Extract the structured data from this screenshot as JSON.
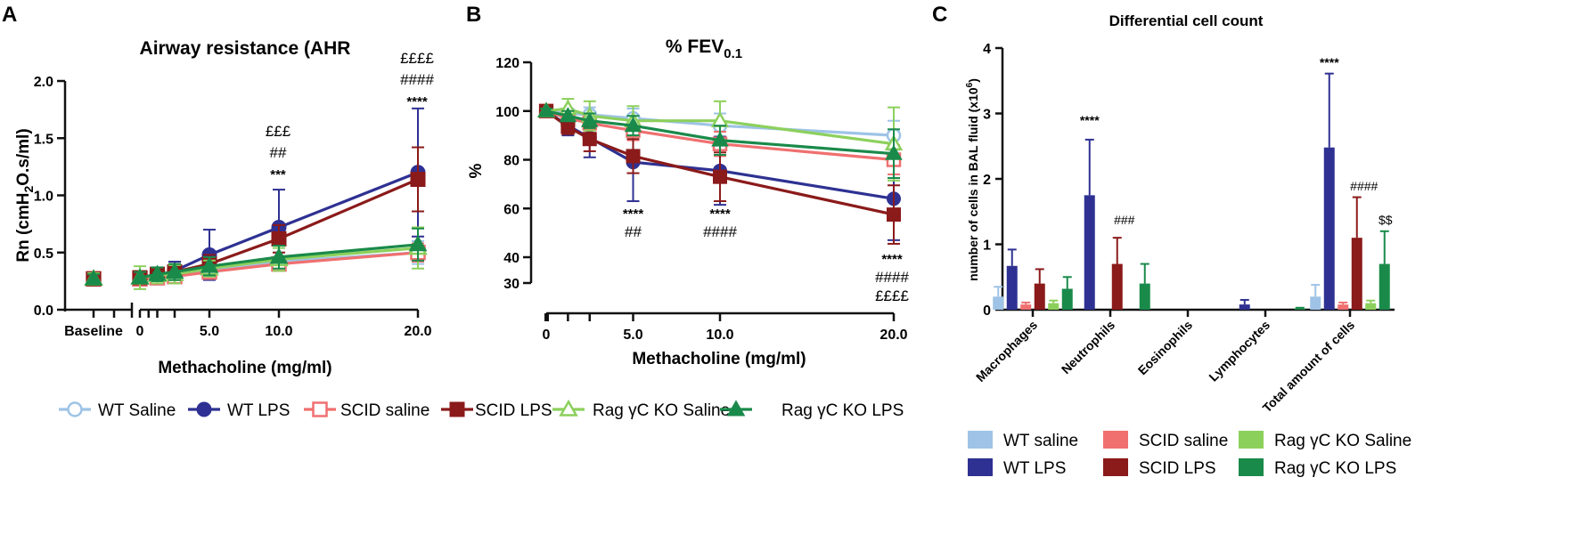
{
  "panels": {
    "A": {
      "letter": "A",
      "title": "Airway resistance (AHR",
      "ylabel": "Rn (cmH2O.s/ml)",
      "xlabel": "Methacholine (mg/ml)"
    },
    "B": {
      "letter": "B",
      "title": "% FEV0.1",
      "ylabel": "%",
      "xlabel": "Methacholine (mg/ml)"
    },
    "C": {
      "letter": "C",
      "title": "Differential cell count",
      "ylabel": "number of cells in BAL fluid (x10^6)"
    }
  },
  "legend_line": [
    {
      "label": "WT Saline",
      "color": "#9ec3e6",
      "marker": "circle-open"
    },
    {
      "label": "WT LPS",
      "color": "#2e3192",
      "marker": "circle"
    },
    {
      "label": "SCID saline",
      "color": "#f07070",
      "marker": "square-open"
    },
    {
      "label": "SCID LPS",
      "color": "#8b1a1a",
      "marker": "square"
    },
    {
      "label": "Rag γC KO Saline",
      "color": "#8cd05c",
      "marker": "triangle-open"
    },
    {
      "label": "Rag γC KO LPS",
      "color": "#1a8a4a",
      "marker": "triangle"
    }
  ],
  "legend_bar": [
    {
      "label": "WT saline",
      "color": "#9ec3e6"
    },
    {
      "label": "SCID saline",
      "color": "#f07070"
    },
    {
      "label": "Rag γC KO Saline",
      "color": "#8cd05c"
    },
    {
      "label": "WT LPS",
      "color": "#2e3192"
    },
    {
      "label": "SCID LPS",
      "color": "#8b1a1a"
    },
    {
      "label": "Rag γC KO LPS",
      "color": "#1a8a4a"
    }
  ],
  "chart_data": [
    {
      "id": "A",
      "type": "line",
      "title": "Airway resistance (AHR",
      "xlabel": "Methacholine (mg/ml)",
      "ylabel": "Rn (cmH2O.s/ml)",
      "xticks": [
        "Baseline",
        "0",
        "5.0",
        "10.0",
        "20.0"
      ],
      "yticks": [
        "0.0",
        "0.5",
        "1.0",
        "1.5",
        "2.0"
      ],
      "ylim": [
        0,
        2.0
      ],
      "x": [
        0,
        0.625,
        1.25,
        2.5,
        5,
        10,
        20
      ],
      "series": [
        {
          "name": "WT Saline",
          "values": [
            0.27,
            0.27,
            0.28,
            0.3,
            0.34,
            0.42,
            0.5
          ],
          "err": [
            0.05,
            0.05,
            0.06,
            0.06,
            0.06,
            0.08,
            0.1
          ]
        },
        {
          "name": "WT LPS",
          "values": [
            0.27,
            0.28,
            0.3,
            0.34,
            0.48,
            0.72,
            1.2
          ],
          "err": [
            0.04,
            0.05,
            0.07,
            0.08,
            0.22,
            0.33,
            0.56
          ]
        },
        {
          "name": "SCID saline",
          "values": [
            0.27,
            0.27,
            0.28,
            0.29,
            0.33,
            0.4,
            0.5
          ],
          "err": [
            0.04,
            0.04,
            0.05,
            0.05,
            0.05,
            0.06,
            0.08
          ]
        },
        {
          "name": "SCID LPS",
          "values": [
            0.27,
            0.28,
            0.31,
            0.33,
            0.4,
            0.62,
            1.14
          ],
          "err": [
            0.04,
            0.05,
            0.06,
            0.07,
            0.08,
            0.12,
            0.28
          ]
        },
        {
          "name": "Rag γC KO Saline",
          "values": [
            0.27,
            0.28,
            0.3,
            0.31,
            0.36,
            0.44,
            0.54
          ],
          "err": [
            0.05,
            0.1,
            0.07,
            0.08,
            0.07,
            0.1,
            0.18
          ]
        },
        {
          "name": "Rag γC KO LPS",
          "values": [
            0.27,
            0.28,
            0.31,
            0.33,
            0.38,
            0.46,
            0.57
          ],
          "err": [
            0.04,
            0.05,
            0.06,
            0.07,
            0.08,
            0.1,
            0.14
          ]
        }
      ],
      "annotations": [
        {
          "x": 10,
          "lines": [
            "£££",
            "##",
            "***"
          ]
        },
        {
          "x": 20,
          "lines": [
            "££££",
            "####",
            "****"
          ]
        }
      ]
    },
    {
      "id": "B",
      "type": "line",
      "title": "% FEV0.1",
      "xlabel": "Methacholine (mg/ml)",
      "ylabel": "%",
      "xticks": [
        "0",
        "5.0",
        "10.0",
        "20.0"
      ],
      "yticks": [
        "30",
        "40",
        "60",
        "80",
        "100",
        "120"
      ],
      "ylim": [
        30,
        120
      ],
      "x": [
        0,
        1.25,
        2.5,
        5,
        10,
        20
      ],
      "series": [
        {
          "name": "WT Saline",
          "values": [
            100,
            99,
            98.5,
            97,
            94,
            90
          ],
          "err": [
            1,
            2,
            3,
            4,
            5,
            6
          ]
        },
        {
          "name": "WT LPS",
          "values": [
            100,
            94,
            89,
            79,
            75.5,
            64
          ],
          "err": [
            1,
            4,
            8,
            16,
            14,
            17
          ]
        },
        {
          "name": "SCID saline",
          "values": [
            100,
            97,
            95,
            92,
            86.5,
            80
          ],
          "err": [
            1,
            2,
            3,
            4,
            5,
            6
          ]
        },
        {
          "name": "SCID LPS",
          "values": [
            100,
            93.5,
            88.5,
            81.5,
            73,
            57.5
          ],
          "err": [
            1,
            3,
            5,
            7,
            10,
            12
          ]
        },
        {
          "name": "Rag γC KO Saline",
          "values": [
            100,
            101,
            98,
            96,
            96,
            86.5
          ],
          "err": [
            1,
            4,
            6,
            6,
            8,
            15
          ]
        },
        {
          "name": "Rag γC KO LPS",
          "values": [
            100,
            98,
            96,
            94,
            88,
            82.5
          ],
          "err": [
            1,
            2,
            3,
            4,
            6,
            10
          ]
        }
      ],
      "annotations": [
        {
          "x": 5,
          "lines": [
            "****",
            "##"
          ]
        },
        {
          "x": 10,
          "lines": [
            "****",
            "####"
          ]
        },
        {
          "x": 20,
          "lines": [
            "****",
            "####",
            "££££"
          ]
        }
      ]
    },
    {
      "id": "C",
      "type": "bar",
      "title": "Differential cell count",
      "ylabel": "number of cells in BAL fluid (x10^6)",
      "categories": [
        "Macrophages",
        "Neutrophils",
        "Eosinophils",
        "Lymphocytes",
        "Total amount of cells"
      ],
      "yticks": [
        "0",
        "1",
        "2",
        "3",
        "4"
      ],
      "ylim": [
        0,
        4
      ],
      "series": [
        {
          "name": "WT saline",
          "values": [
            0.2,
            0,
            0,
            0,
            0.2
          ],
          "err": [
            0.15,
            0,
            0,
            0,
            0.18
          ]
        },
        {
          "name": "WT LPS",
          "values": [
            0.67,
            1.75,
            0,
            0.08,
            2.48
          ],
          "err": [
            0.25,
            0.85,
            0,
            0.07,
            1.13
          ]
        },
        {
          "name": "SCID saline",
          "values": [
            0.08,
            0,
            0,
            0,
            0.08
          ],
          "err": [
            0.03,
            0,
            0,
            0,
            0.03
          ]
        },
        {
          "name": "SCID LPS",
          "values": [
            0.4,
            0.7,
            0,
            0,
            1.1
          ],
          "err": [
            0.22,
            0.4,
            0,
            0,
            0.62
          ]
        },
        {
          "name": "Rag γC KO Saline",
          "values": [
            0.1,
            0,
            0,
            0,
            0.1
          ],
          "err": [
            0.04,
            0,
            0,
            0,
            0.04
          ]
        },
        {
          "name": "Rag γC KO LPS",
          "values": [
            0.32,
            0.4,
            0,
            0.02,
            0.7
          ],
          "err": [
            0.18,
            0.3,
            0,
            0.01,
            0.5
          ]
        }
      ],
      "annotations": [
        {
          "category": "Neutrophils",
          "series": "WT LPS",
          "text": "****"
        },
        {
          "category": "Neutrophils",
          "series": "SCID LPS",
          "text": "###"
        },
        {
          "category": "Total amount of cells",
          "series": "WT LPS",
          "text": "****"
        },
        {
          "category": "Total amount of cells",
          "series": "SCID LPS",
          "text": "####"
        },
        {
          "category": "Total amount of cells",
          "series": "Rag γC KO LPS",
          "text": "$$"
        }
      ]
    }
  ]
}
